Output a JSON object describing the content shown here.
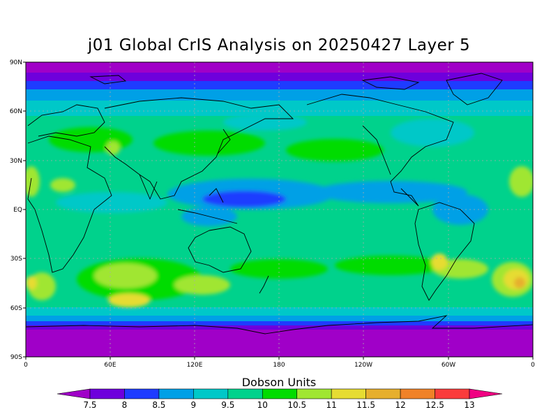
{
  "title": "j01 Global CrIS Analysis on 20250427 Layer 5",
  "lat_labels": [
    "90N",
    "60N",
    "30N",
    "EQ",
    "30S",
    "60S",
    "90S"
  ],
  "lon_labels": [
    "0",
    "60E",
    "120E",
    "180",
    "120W",
    "60W",
    "0"
  ],
  "colorbar": {
    "title": "Dobson Units",
    "tick_labels": [
      "7.5",
      "8",
      "8.5",
      "9",
      "9.5",
      "10",
      "10.5",
      "11",
      "11.5",
      "12",
      "12.5",
      "13"
    ],
    "colors": [
      "#a000c8",
      "#6e00dc",
      "#1e3cff",
      "#00a0e6",
      "#00c8c8",
      "#00d28c",
      "#00dc00",
      "#a0e632",
      "#e6dc32",
      "#e6af2d",
      "#f08228",
      "#fa3c3c",
      "#f00082"
    ]
  },
  "map_colors": {
    "low_band": "#a000c8",
    "very_low": "#6e00dc",
    "low": "#1e3cff",
    "mid_low": "#00a0e6",
    "mid": "#00c8c8",
    "mid_high": "#00d28c",
    "high": "#00dc00",
    "higher": "#a0e632",
    "highest": "#e6dc32",
    "peak": "#e6af2d"
  }
}
